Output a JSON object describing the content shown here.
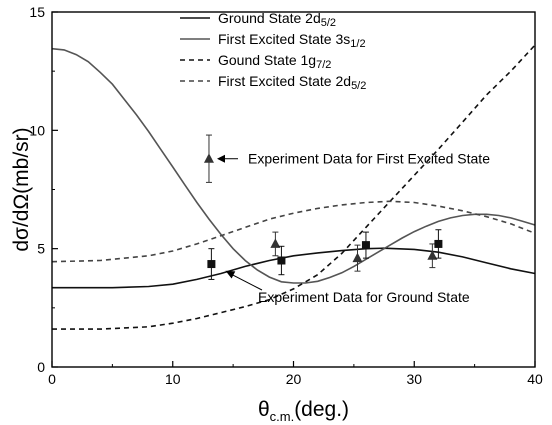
{
  "chart_data": {
    "type": "line",
    "title": "",
    "xlabel": {
      "main": "θ",
      "sub": "c.m.",
      "tail": "(deg.)"
    },
    "ylabel": "dσ/dΩ(mb/sr)",
    "xlim": [
      0,
      40
    ],
    "ylim": [
      0,
      15
    ],
    "xticks": [
      0,
      10,
      20,
      30,
      40
    ],
    "yticks": [
      0,
      5,
      10,
      15
    ],
    "grid": false,
    "legend_position": "top-center",
    "series": [
      {
        "name": "Ground State 2d5/2",
        "label_main": "Ground State 2d",
        "label_sub": "5/2",
        "style": "solid",
        "color": "#111111",
        "x": [
          0,
          5,
          8,
          10,
          12,
          14,
          16,
          18,
          20,
          22,
          24,
          26,
          27.5,
          30,
          32,
          34,
          36,
          38,
          40
        ],
        "y": [
          3.35,
          3.35,
          3.4,
          3.5,
          3.7,
          3.95,
          4.25,
          4.5,
          4.7,
          4.82,
          4.92,
          5.0,
          5.02,
          4.97,
          4.85,
          4.65,
          4.4,
          4.15,
          3.95
        ]
      },
      {
        "name": "First Excited State 3s1/2",
        "label_main": "First Excited State 3s",
        "label_sub": "1/2",
        "style": "solid",
        "color": "#555555",
        "x": [
          0,
          1,
          2,
          3,
          4,
          5,
          6,
          7,
          8,
          9,
          10,
          11,
          12,
          13,
          14,
          15,
          16,
          17,
          18,
          19,
          20,
          21,
          22,
          23,
          24,
          25,
          26,
          27,
          28,
          29,
          30,
          31,
          32,
          33,
          34,
          35,
          36,
          37,
          38,
          39,
          40
        ],
        "y": [
          13.45,
          13.4,
          13.2,
          12.9,
          12.45,
          11.95,
          11.3,
          10.65,
          9.95,
          9.2,
          8.45,
          7.7,
          6.95,
          6.25,
          5.6,
          5.0,
          4.5,
          4.1,
          3.8,
          3.6,
          3.55,
          3.55,
          3.62,
          3.78,
          3.98,
          4.25,
          4.55,
          4.85,
          5.15,
          5.45,
          5.72,
          5.95,
          6.15,
          6.3,
          6.4,
          6.45,
          6.45,
          6.4,
          6.3,
          6.15,
          6.0
        ]
      },
      {
        "name": "Gound State 1g7/2",
        "label_main": "Gound State 1g",
        "label_sub": "7/2",
        "style": "dashed",
        "color": "#111111",
        "x": [
          0,
          4,
          8,
          10,
          12,
          14,
          16,
          18,
          20,
          22,
          24,
          26,
          28,
          30,
          32,
          34,
          36,
          38,
          40
        ],
        "y": [
          1.6,
          1.6,
          1.7,
          1.85,
          2.05,
          2.3,
          2.55,
          2.85,
          3.3,
          3.9,
          4.8,
          5.9,
          7.0,
          8.1,
          9.2,
          10.35,
          11.5,
          12.5,
          13.6
        ]
      },
      {
        "name": "First Excited State 2d5/2",
        "label_main": "First Excited State 2d",
        "label_sub": "5/2",
        "style": "dashed",
        "color": "#444444",
        "x": [
          0,
          4,
          8,
          10,
          12,
          14,
          16,
          18,
          20,
          22,
          24,
          26,
          28,
          30,
          32,
          34,
          36,
          38,
          40
        ],
        "y": [
          4.45,
          4.5,
          4.7,
          4.9,
          5.2,
          5.55,
          5.9,
          6.25,
          6.5,
          6.7,
          6.85,
          6.95,
          7.0,
          6.95,
          6.8,
          6.6,
          6.35,
          6.05,
          5.65
        ]
      }
    ],
    "experiment": [
      {
        "name": "Experiment Data for First Excited State",
        "marker": "triangle",
        "color": "#333333",
        "points": [
          {
            "x": 13,
            "y": 8.8,
            "err": 1.0
          },
          {
            "x": 18.5,
            "y": 5.2,
            "err": 0.5
          },
          {
            "x": 25.3,
            "y": 4.6,
            "err": 0.55
          },
          {
            "x": 31.5,
            "y": 4.7,
            "err": 0.5
          }
        ]
      },
      {
        "name": "Experiment Data for Ground State",
        "marker": "square",
        "color": "#111111",
        "points": [
          {
            "x": 13.2,
            "y": 4.35,
            "err": 0.65
          },
          {
            "x": 19,
            "y": 4.5,
            "err": 0.6
          },
          {
            "x": 26,
            "y": 5.15,
            "err": 0.55
          },
          {
            "x": 32,
            "y": 5.2,
            "err": 0.6
          }
        ]
      }
    ],
    "annotations": [
      {
        "text": "Experiment Data for First Excited State",
        "points_to": {
          "x": 13.5,
          "y": 8.8
        }
      },
      {
        "text": "Experiment Data for Ground State",
        "points_to": {
          "x": 14.2,
          "y": 4.15
        }
      }
    ]
  }
}
